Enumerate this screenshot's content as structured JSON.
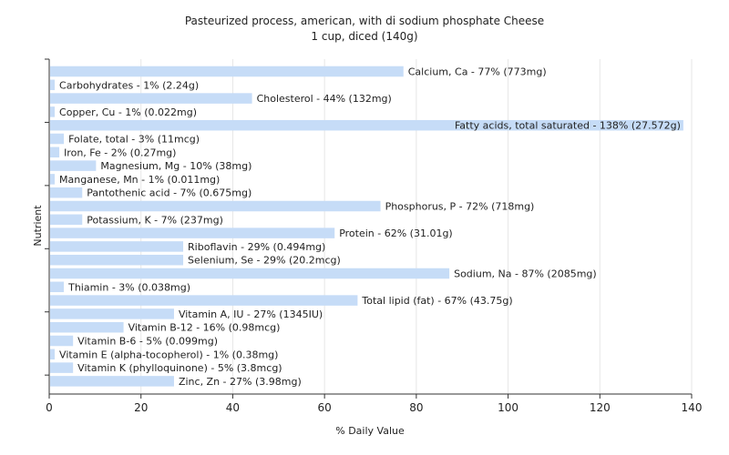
{
  "chart_data": {
    "type": "bar",
    "orientation": "horizontal",
    "title": "Pasteurized process, american, with di sodium phosphate Cheese",
    "subtitle": "1 cup, diced (140g)",
    "xlabel": "% Daily Value",
    "ylabel": "Nutrient",
    "xlim": [
      0,
      140
    ],
    "xticks": [
      0,
      20,
      40,
      60,
      80,
      100,
      120,
      140
    ],
    "grid": true,
    "bar_color": "#c6dcf7",
    "bars": [
      {
        "label": "Calcium, Ca - 77% (773mg)",
        "value": 77
      },
      {
        "label": "Carbohydrates - 1% (2.24g)",
        "value": 1
      },
      {
        "label": "Cholesterol - 44% (132mg)",
        "value": 44
      },
      {
        "label": "Copper, Cu - 1% (0.022mg)",
        "value": 1
      },
      {
        "label": "Fatty acids, total saturated - 138% (27.572g)",
        "value": 138
      },
      {
        "label": "Folate, total - 3% (11mcg)",
        "value": 3
      },
      {
        "label": "Iron, Fe - 2% (0.27mg)",
        "value": 2
      },
      {
        "label": "Magnesium, Mg - 10% (38mg)",
        "value": 10
      },
      {
        "label": "Manganese, Mn - 1% (0.011mg)",
        "value": 1
      },
      {
        "label": "Pantothenic acid - 7% (0.675mg)",
        "value": 7
      },
      {
        "label": "Phosphorus, P - 72% (718mg)",
        "value": 72
      },
      {
        "label": "Potassium, K - 7% (237mg)",
        "value": 7
      },
      {
        "label": "Protein - 62% (31.01g)",
        "value": 62
      },
      {
        "label": "Riboflavin - 29% (0.494mg)",
        "value": 29
      },
      {
        "label": "Selenium, Se - 29% (20.2mcg)",
        "value": 29
      },
      {
        "label": "Sodium, Na - 87% (2085mg)",
        "value": 87
      },
      {
        "label": "Thiamin - 3% (0.038mg)",
        "value": 3
      },
      {
        "label": "Total lipid (fat) - 67% (43.75g)",
        "value": 67
      },
      {
        "label": "Vitamin A, IU - 27% (1345IU)",
        "value": 27
      },
      {
        "label": "Vitamin B-12 - 16% (0.98mcg)",
        "value": 16
      },
      {
        "label": "Vitamin B-6 - 5% (0.099mg)",
        "value": 5
      },
      {
        "label": "Vitamin E (alpha-tocopherol) - 1% (0.38mg)",
        "value": 1
      },
      {
        "label": "Vitamin K (phylloquinone) - 5% (3.8mcg)",
        "value": 5
      },
      {
        "label": "Zinc, Zn - 27% (3.98mg)",
        "value": 27
      }
    ]
  }
}
